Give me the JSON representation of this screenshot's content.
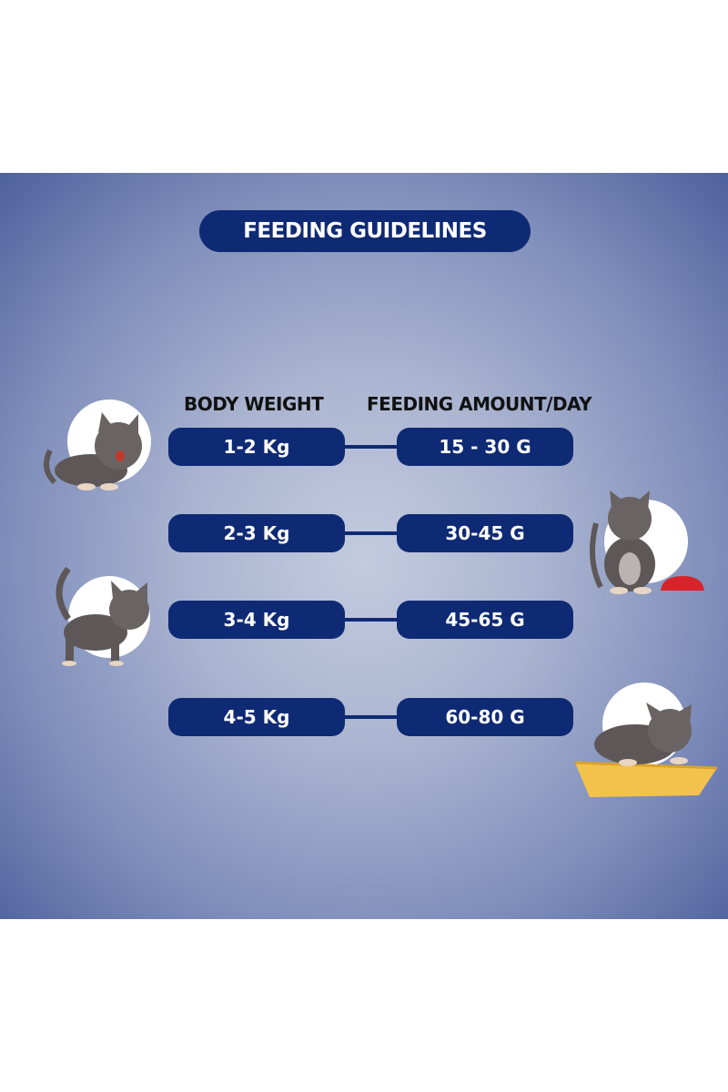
{
  "title": "FEEDING GUIDELINES",
  "headers": {
    "body_weight": "BODY WEIGHT",
    "feeding_amount": "FEEDING AMOUNT/DAY"
  },
  "rows": [
    {
      "weight": "1-2 Kg",
      "amount": "15 - 30 G"
    },
    {
      "weight": "2-3 Kg",
      "amount": "30-45 G"
    },
    {
      "weight": "3-4 Kg",
      "amount": "45-65 G"
    },
    {
      "weight": "4-5 Kg",
      "amount": "60-80 G"
    }
  ],
  "colors": {
    "pill": "#0f2a74",
    "cat": "#5e5758",
    "bowl": "#d8232a",
    "cushion": "#f3c24a"
  }
}
